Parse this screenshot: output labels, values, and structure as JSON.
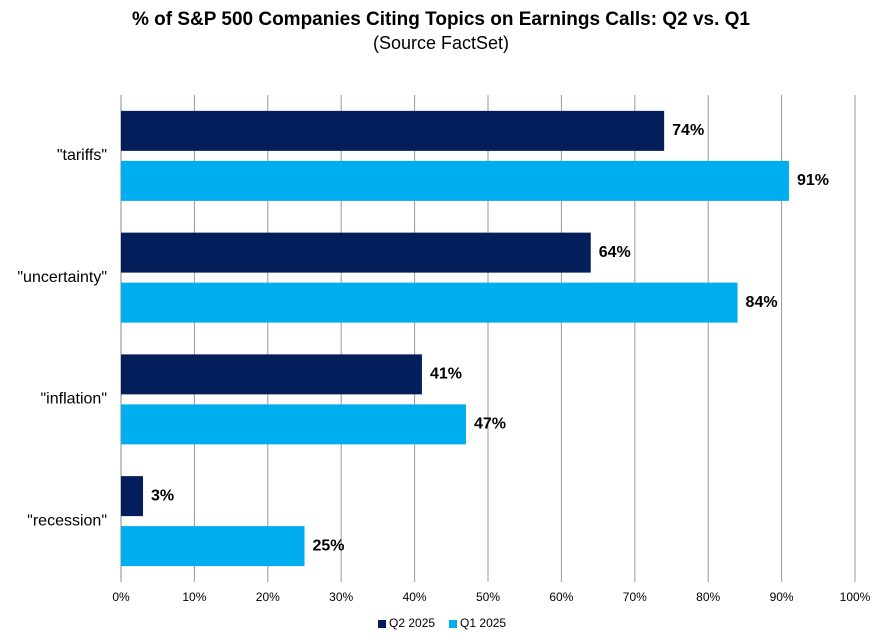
{
  "chart_data": {
    "type": "bar",
    "orientation": "horizontal",
    "title": "% of S&P 500 Companies Citing Topics on Earnings Calls: Q2 vs. Q1",
    "subtitle": "(Source FactSet)",
    "categories": [
      "\"tariffs\"",
      "\"uncertainty\"",
      "\"inflation\"",
      "\"recession\""
    ],
    "series": [
      {
        "name": "Q2 2025",
        "color": "#041e5b",
        "values": [
          74,
          64,
          41,
          3
        ],
        "value_labels": [
          "74%",
          "64%",
          "41%",
          "3%"
        ]
      },
      {
        "name": "Q1 2025",
        "color": "#00adee",
        "values": [
          91,
          84,
          47,
          25
        ],
        "value_labels": [
          "91%",
          "84%",
          "47%",
          "25%"
        ]
      }
    ],
    "xlim": [
      0,
      100
    ],
    "xticks": [
      {
        "value": 0,
        "label": "0%"
      },
      {
        "value": 10,
        "label": "10%"
      },
      {
        "value": 20,
        "label": "20%"
      },
      {
        "value": 30,
        "label": "30%"
      },
      {
        "value": 40,
        "label": "40%"
      },
      {
        "value": 50,
        "label": "50%"
      },
      {
        "value": 60,
        "label": "60%"
      },
      {
        "value": 70,
        "label": "70%"
      },
      {
        "value": 80,
        "label": "80%"
      },
      {
        "value": 90,
        "label": "90%"
      },
      {
        "value": 100,
        "label": "100%"
      }
    ],
    "grid": true,
    "legend": "bottom"
  }
}
